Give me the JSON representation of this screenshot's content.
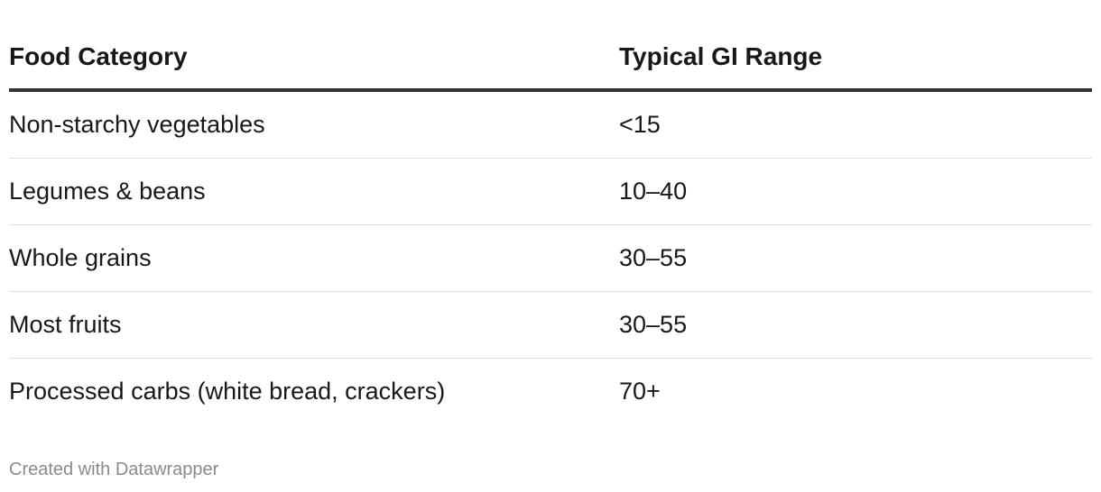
{
  "table": {
    "header": [
      "Food Category",
      "Typical GI Range"
    ],
    "rows": [
      [
        "Non-starchy vegetables",
        "<15"
      ],
      [
        "Legumes & beans",
        "10–40"
      ],
      [
        "Whole grains",
        "30–55"
      ],
      [
        "Most fruits",
        "30–55"
      ],
      [
        "Processed carbs (white bread, crackers)",
        "70+"
      ]
    ]
  },
  "footer": "Created with Datawrapper"
}
